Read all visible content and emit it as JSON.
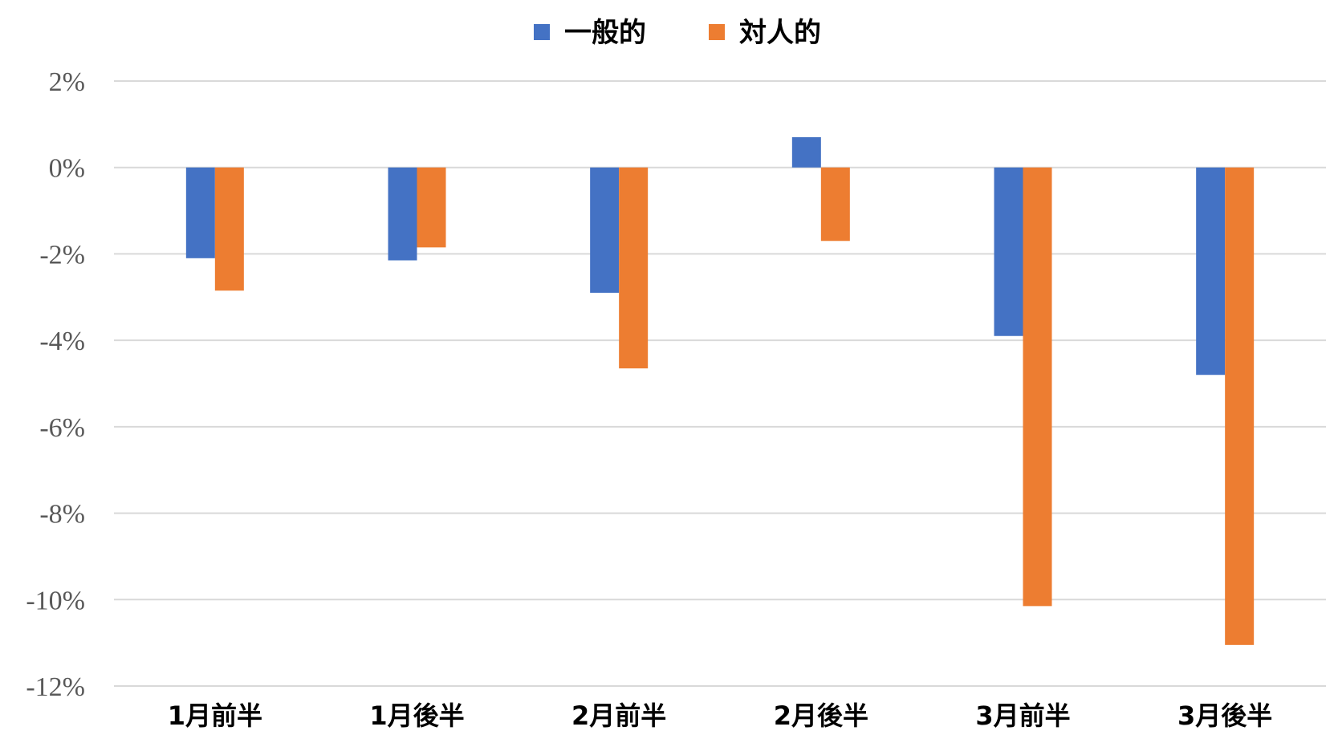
{
  "chart_data": {
    "type": "bar",
    "categories": [
      "1月前半",
      "1月後半",
      "2月前半",
      "2月後半",
      "3月前半",
      "3月後半"
    ],
    "series": [
      {
        "name": "一般的",
        "color": "#4472c4",
        "values": [
          -2.1,
          -2.15,
          -2.9,
          0.7,
          -3.9,
          -4.8
        ]
      },
      {
        "name": "対人的",
        "color": "#ed7d31",
        "values": [
          -2.85,
          -1.85,
          -4.65,
          -1.7,
          -10.15,
          -11.05
        ]
      }
    ],
    "ylim": [
      -12,
      2
    ],
    "yticks": [
      2,
      0,
      -2,
      -4,
      -6,
      -8,
      -10,
      -12
    ],
    "ytick_labels": [
      "2%",
      "0%",
      "-2%",
      "-4%",
      "-6%",
      "-8%",
      "-10%",
      "-12%"
    ],
    "grid": true,
    "legend_position": "top-center",
    "title": "",
    "xlabel": "",
    "ylabel": ""
  }
}
